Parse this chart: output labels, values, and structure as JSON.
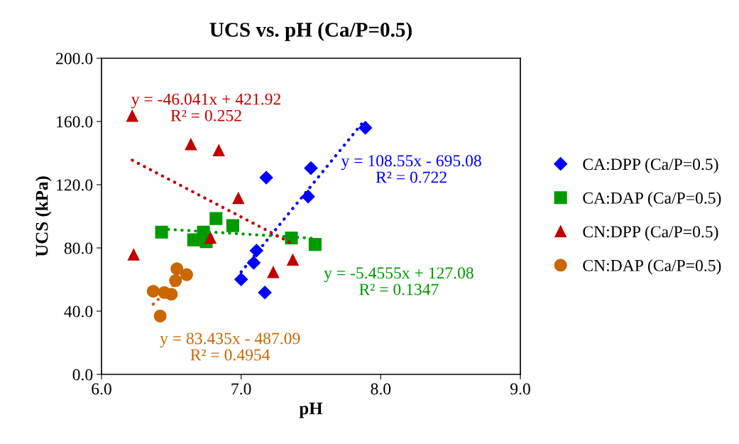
{
  "chart_data": {
    "type": "scatter",
    "title": "UCS vs. pH (Ca/P=0.5)",
    "xlabel": "pH",
    "ylabel": "UCS (kPa)",
    "xlim": [
      6.0,
      9.0
    ],
    "ylim": [
      0.0,
      200.0
    ],
    "xticks": [
      {
        "value": 6,
        "label": "6.0"
      },
      {
        "value": 7,
        "label": "7.0"
      },
      {
        "value": 8,
        "label": "8.0"
      },
      {
        "value": 9,
        "label": "9.0"
      }
    ],
    "yticks": [
      {
        "value": 0,
        "label": "0.0"
      },
      {
        "value": 40,
        "label": "40.0"
      },
      {
        "value": 80,
        "label": "80.0"
      },
      {
        "value": 120,
        "label": "120.0"
      },
      {
        "value": 160,
        "label": "160.0"
      },
      {
        "value": 200,
        "label": "200.0"
      }
    ],
    "grid": false,
    "legend": "right",
    "series": [
      {
        "name": "CA:DPP (Ca/P=0.5)",
        "color": "#0000ff",
        "marker": "diamond",
        "x": [
          7.0,
          7.09,
          7.11,
          7.17,
          7.18,
          7.48,
          7.5,
          7.89
        ],
        "values": [
          60.1,
          70.6,
          78.3,
          51.8,
          124.5,
          112.5,
          130.5,
          156.0
        ]
      },
      {
        "name": "CA:DAP (Ca/P=0.5)",
        "color": "#009900",
        "marker": "square",
        "x": [
          6.43,
          6.66,
          6.73,
          6.75,
          6.82,
          6.94,
          7.36,
          7.53
        ],
        "values": [
          90.0,
          85.1,
          90.0,
          84.0,
          98.6,
          94.1,
          86.3,
          82.2
        ]
      },
      {
        "name": "CN:DPP (Ca/P=0.5)",
        "color": "#c00000",
        "marker": "triangle",
        "x": [
          6.22,
          6.64,
          6.84,
          6.98,
          6.78,
          6.23,
          7.23,
          7.37
        ],
        "values": [
          163.5,
          145.5,
          141.7,
          111.5,
          86.3,
          75.8,
          64.6,
          72.5
        ]
      },
      {
        "name": "CN:DAP (Ca/P=0.5)",
        "color": "#cc6600",
        "marker": "circle",
        "x": [
          6.37,
          6.42,
          6.45,
          6.5,
          6.53,
          6.54,
          6.61
        ],
        "values": [
          52.6,
          36.9,
          51.8,
          50.7,
          59.3,
          66.8,
          63.1
        ]
      },
      {
        "type": "line",
        "line_style": "dotted",
        "marker": "none",
        "color": "#0000ff",
        "x": [
          7.0,
          7.89
        ],
        "values": [
          64.8,
          161.4
        ]
      },
      {
        "type": "line",
        "line_style": "dotted",
        "marker": "none",
        "color": "#009900",
        "x": [
          6.43,
          7.53
        ],
        "values": [
          92.0,
          86.0
        ]
      },
      {
        "type": "line",
        "line_style": "dotted",
        "marker": "none",
        "color": "#c00000",
        "x": [
          6.22,
          7.37
        ],
        "values": [
          135.5,
          82.6
        ]
      },
      {
        "type": "line",
        "line_style": "dotted",
        "marker": "none",
        "color": "#cc6600",
        "x": [
          6.37,
          6.61
        ],
        "values": [
          44.4,
          64.4
        ]
      }
    ],
    "annotations": [
      "y = 108.55x - 695.08\nR² = 0.722",
      "y = -5.4555x + 127.08\nR² = 0.1347",
      "y = -46.041x + 421.92\nR² = 0.252",
      "y = 83.435x - 487.09\nR² = 0.4954"
    ]
  }
}
